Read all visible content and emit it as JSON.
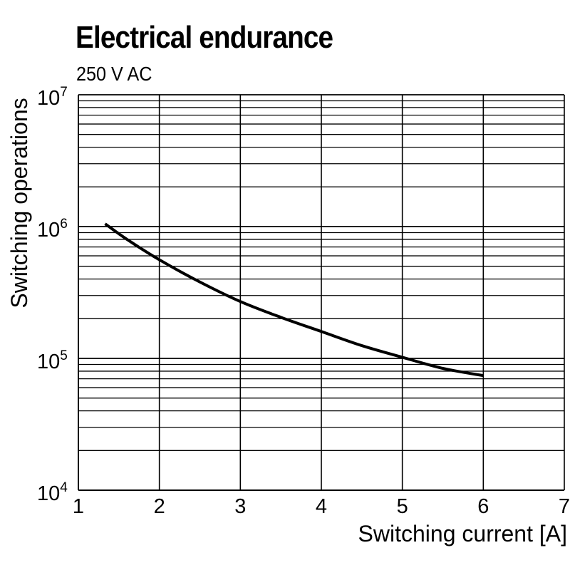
{
  "chart_data": {
    "type": "line",
    "title": "Electrical endurance",
    "subtitle": "250 V AC",
    "xlabel": "Switching current [A]",
    "ylabel": "Switching operations",
    "x_scale": "linear",
    "y_scale": "log",
    "xlim": [
      1,
      7
    ],
    "ylim": [
      10000,
      10000000
    ],
    "x_ticks": [
      "1",
      "2",
      "3",
      "4",
      "5",
      "6",
      "7"
    ],
    "y_ticks": [
      {
        "base": "10",
        "exp": "4",
        "value": 10000
      },
      {
        "base": "10",
        "exp": "5",
        "value": 100000
      },
      {
        "base": "10",
        "exp": "6",
        "value": 1000000
      },
      {
        "base": "10",
        "exp": "7",
        "value": 10000000
      }
    ],
    "grid": true,
    "series": [
      {
        "x": [
          1.33,
          1.6,
          2.0,
          2.5,
          3.0,
          3.5,
          4.0,
          4.5,
          5.0,
          5.5,
          6.0
        ],
        "y": [
          1050000,
          800000,
          560000,
          380000,
          270000,
          205000,
          160000,
          125000,
          102000,
          84000,
          74000
        ]
      }
    ],
    "colors": {
      "line": "#000000",
      "grid": "#000000"
    }
  }
}
